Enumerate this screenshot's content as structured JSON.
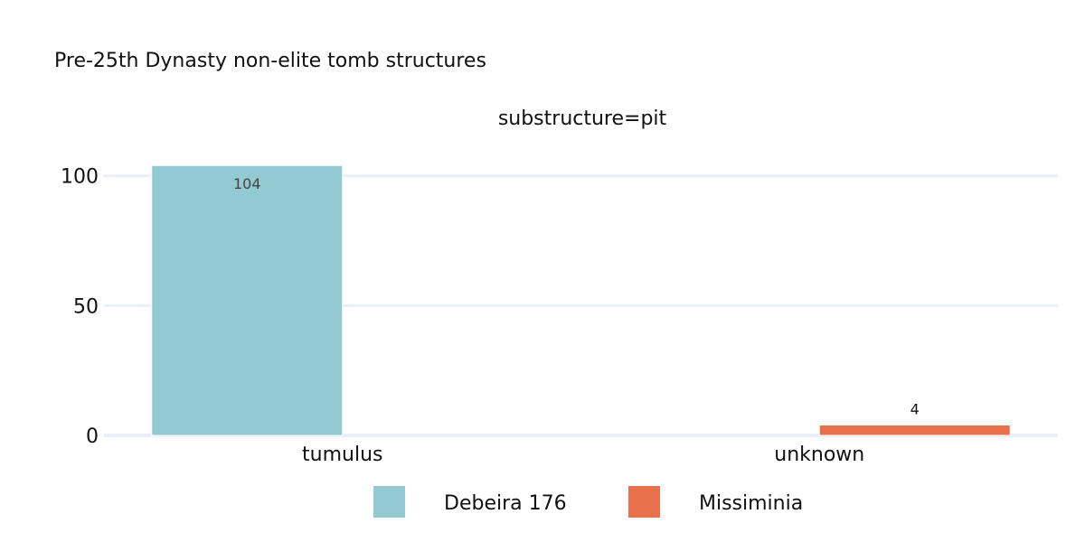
{
  "chart_data": {
    "type": "bar",
    "title": "Pre-25th Dynasty non-elite tomb structures",
    "facet_label": "substructure=pit",
    "categories": [
      "tumulus",
      "unknown"
    ],
    "series": [
      {
        "name": "Debeira 176",
        "color": "#93c9d1",
        "values": [
          104,
          null
        ],
        "value_labels": [
          "104",
          null
        ]
      },
      {
        "name": "Missiminia",
        "color": "#e8714b",
        "values": [
          null,
          4
        ],
        "value_labels": [
          null,
          "4"
        ]
      }
    ],
    "ylim": [
      0,
      110
    ],
    "yticks": [
      "0",
      "50",
      "100"
    ],
    "ytick_values": [
      0,
      50,
      100
    ],
    "grid": true,
    "legend_position": "bottom-center"
  }
}
